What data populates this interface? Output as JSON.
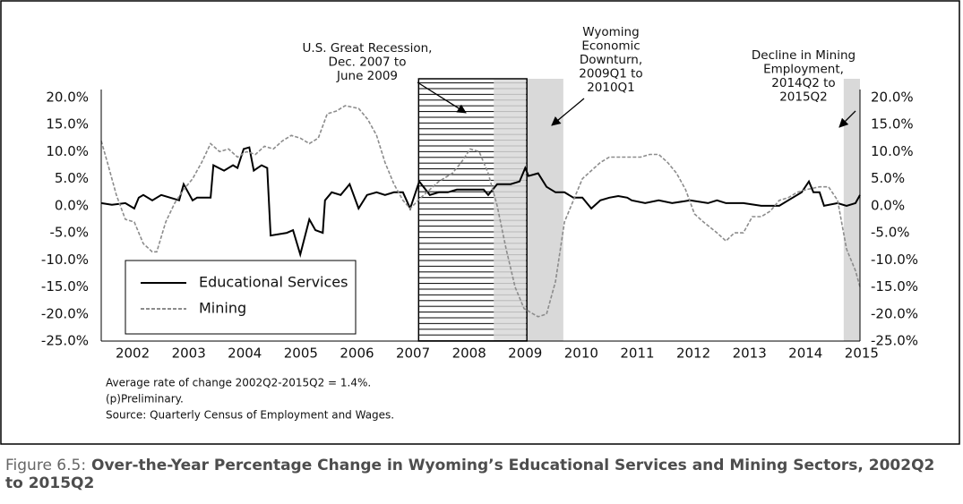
{
  "chart_data": {
    "type": "line",
    "xlim": [
      2001.44,
      2014.97
    ],
    "xticks": [
      2002,
      2003,
      2004,
      2005,
      2006,
      2007,
      2008,
      2009,
      2010,
      2011,
      2012,
      2013,
      2014,
      2015
    ],
    "ylim": [
      -25,
      20
    ],
    "yticks": [
      {
        "value": 20,
        "label": "20.0%"
      },
      {
        "value": 15,
        "label": "15.0%"
      },
      {
        "value": 10,
        "label": "10.0%"
      },
      {
        "value": 5,
        "label": "5.0%"
      },
      {
        "value": 0,
        "label": "0.0%"
      },
      {
        "value": -5,
        "label": "-5.0%"
      },
      {
        "value": -10,
        "label": "-10.0%"
      },
      {
        "value": -15,
        "label": "-15.0%"
      },
      {
        "value": -20,
        "label": "-20.0%"
      },
      {
        "value": -25,
        "label": "-25.0%"
      }
    ],
    "grid": false,
    "legend": "lower left",
    "series": [
      {
        "name": "Educational Services",
        "color": "#000000",
        "dash": "solid",
        "x": [
          2001.44,
          2001.63,
          2001.87,
          2002.03,
          2002.11,
          2002.19,
          2002.35,
          2002.51,
          2002.67,
          2002.83,
          2002.91,
          2003.07,
          2003.15,
          2003.39,
          2003.44,
          2003.63,
          2003.79,
          2003.87,
          2003.98,
          2004.08,
          2004.16,
          2004.3,
          2004.4,
          2004.46,
          2004.75,
          2004.86,
          2004.99,
          2005.15,
          2005.26,
          2005.39,
          2005.43,
          2005.55,
          2005.71,
          2005.87,
          2006.03,
          2006.18,
          2006.35,
          2006.5,
          2006.66,
          2006.82,
          2006.95,
          2007.11,
          2007.3,
          2007.46,
          2007.62,
          2007.78,
          2008.1,
          2008.26,
          2008.34,
          2008.5,
          2008.74,
          2008.9,
          2009.0,
          2009.06,
          2009.23,
          2009.38,
          2009.54,
          2009.7,
          2009.86,
          2010.02,
          2010.18,
          2010.34,
          2010.5,
          2010.66,
          2010.82,
          2010.9,
          2011.14,
          2011.38,
          2011.62,
          2011.94,
          2012.26,
          2012.42,
          2012.58,
          2012.89,
          2013.21,
          2013.53,
          2013.69,
          2013.93,
          2014.06,
          2014.14,
          2014.25,
          2014.33,
          2014.57,
          2014.73,
          2014.89,
          2014.97
        ],
        "values": [
          0.5,
          0.2,
          0.5,
          -0.5,
          1.5,
          2.0,
          1.0,
          2.0,
          1.5,
          1.0,
          4.0,
          1.0,
          1.5,
          1.5,
          7.5,
          6.5,
          7.5,
          7.0,
          10.5,
          10.8,
          6.5,
          7.5,
          7.0,
          -5.5,
          -5.0,
          -4.5,
          -9.0,
          -2.5,
          -4.5,
          -5.0,
          1.0,
          2.5,
          2.0,
          4.0,
          -0.5,
          2.0,
          2.5,
          2.0,
          2.5,
          2.5,
          -0.5,
          4.5,
          2.0,
          2.5,
          2.5,
          3.0,
          3.0,
          3.0,
          2.0,
          4.0,
          4.0,
          4.5,
          7.0,
          5.5,
          6.0,
          3.5,
          2.5,
          2.5,
          1.5,
          1.5,
          -0.5,
          1.0,
          1.5,
          1.8,
          1.5,
          1.0,
          0.5,
          1.0,
          0.5,
          1.0,
          0.5,
          1.0,
          0.5,
          0.5,
          0.0,
          0.0,
          1.0,
          2.5,
          4.5,
          2.5,
          2.5,
          0.0,
          0.5,
          0.0,
          0.5,
          2.0
        ]
      },
      {
        "name": "Mining",
        "color": "#8c8c8c",
        "dash": "dashed",
        "x": [
          2001.44,
          2001.55,
          2001.71,
          2001.87,
          2002.03,
          2002.19,
          2002.35,
          2002.43,
          2002.59,
          2002.75,
          2002.91,
          2003.07,
          2003.23,
          2003.39,
          2003.55,
          2003.71,
          2003.87,
          2004.03,
          2004.19,
          2004.35,
          2004.51,
          2004.67,
          2004.83,
          2004.99,
          2005.15,
          2005.31,
          2005.47,
          2005.63,
          2005.79,
          2006.03,
          2006.19,
          2006.35,
          2006.5,
          2006.66,
          2006.82,
          2006.95,
          2007.14,
          2007.46,
          2007.7,
          2007.86,
          2008.02,
          2008.18,
          2008.34,
          2008.5,
          2008.66,
          2008.82,
          2008.98,
          2009.23,
          2009.38,
          2009.54,
          2009.7,
          2009.86,
          2010.02,
          2010.18,
          2010.34,
          2010.5,
          2010.82,
          2011.06,
          2011.22,
          2011.38,
          2011.54,
          2011.7,
          2011.86,
          2012.02,
          2012.18,
          2012.42,
          2012.58,
          2012.73,
          2012.89,
          2013.05,
          2013.21,
          2013.37,
          2013.53,
          2013.69,
          2013.85,
          2014.01,
          2014.25,
          2014.41,
          2014.57,
          2014.73,
          2014.89,
          2014.97
        ],
        "values": [
          12.0,
          8.0,
          2.0,
          -2.5,
          -3.0,
          -7.0,
          -8.5,
          -8.5,
          -3.0,
          0.5,
          3.0,
          5.0,
          8.0,
          11.5,
          10.0,
          10.5,
          9.0,
          10.0,
          9.5,
          11.0,
          10.5,
          12.0,
          13.0,
          12.5,
          11.5,
          12.5,
          17.0,
          17.5,
          18.5,
          18.0,
          16.0,
          13.0,
          8.0,
          4.0,
          1.0,
          -0.5,
          1.5,
          4.5,
          6.0,
          8.0,
          10.5,
          10.0,
          6.0,
          0.0,
          -8.0,
          -15.0,
          -19.0,
          -20.5,
          -20.0,
          -14.0,
          -3.0,
          1.0,
          5.0,
          6.5,
          8.0,
          9.0,
          9.0,
          9.0,
          9.5,
          9.5,
          8.0,
          6.0,
          3.0,
          -1.5,
          -3.0,
          -5.0,
          -6.5,
          -5.0,
          -5.0,
          -2.0,
          -2.0,
          -1.0,
          1.0,
          1.5,
          2.5,
          3.0,
          3.5,
          3.5,
          1.0,
          -8.0,
          -12.0,
          -15.0
        ]
      }
    ],
    "shaded_regions": [
      {
        "start": 2008.44,
        "end": 2009.68,
        "style": "gray"
      },
      {
        "start": 2007.1,
        "end": 2009.03,
        "style": "hatched"
      },
      {
        "start": 2014.68,
        "end": 2014.97,
        "style": "gray"
      }
    ],
    "annotations": [
      {
        "lines": [
          "U.S. Great Recession,",
          "Dec. 2007 to",
          "June 2009"
        ]
      },
      {
        "lines": [
          "Wyoming",
          "Economic",
          "Downturn,",
          "2009Q1 to",
          "2010Q1"
        ]
      },
      {
        "lines": [
          "Decline in Mining",
          "Employment,",
          "2014Q2 to",
          "2015Q2"
        ]
      }
    ],
    "notes": [
      "Average rate of change 2002Q2-2015Q2 = 1.4%.",
      "(p)Preliminary.",
      "Source: Quarterly Census of Employment and Wages."
    ],
    "caption": {
      "label": "Figure 6.5:",
      "title": "Over-the-Year Percentage Change in Wyoming’s Educational Services and Mining Sectors, 2002Q2 to 2015Q2"
    }
  }
}
